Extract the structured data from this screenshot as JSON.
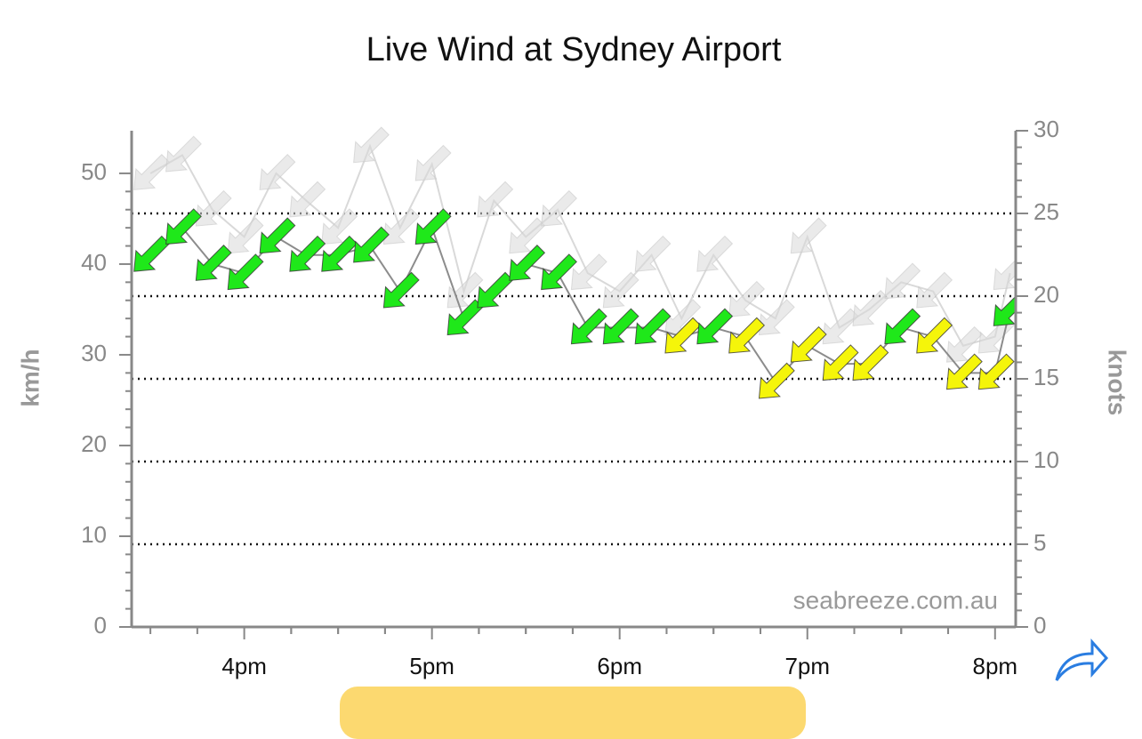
{
  "chart_data": {
    "type": "wind-arrows",
    "title": "Live Wind at Sydney Airport",
    "y_label": "km/h",
    "y2_label": "knots",
    "watermark": "seabreeze.com.au",
    "x": [
      15.5,
      15.67,
      15.83,
      16,
      16.17,
      16.33,
      16.5,
      16.67,
      16.83,
      17,
      17.17,
      17.33,
      17.5,
      17.67,
      17.83,
      18,
      18.17,
      18.33,
      18.5,
      18.67,
      18.83,
      19,
      19.17,
      19.33,
      19.5,
      19.67,
      19.83,
      20,
      20.08
    ],
    "xlim": [
      15.4,
      20.11
    ],
    "xticks": [
      {
        "value": 16,
        "label": "4pm"
      },
      {
        "value": 17,
        "label": "5pm"
      },
      {
        "value": 18,
        "label": "6pm"
      },
      {
        "value": 19,
        "label": "7pm"
      },
      {
        "value": 20,
        "label": "8pm"
      }
    ],
    "ylim": [
      0,
      54.7
    ],
    "yticks": [
      0,
      10,
      20,
      30,
      40,
      50
    ],
    "y2lim": [
      0,
      30
    ],
    "y2ticks": [
      0,
      5,
      10,
      15,
      20,
      25,
      30
    ],
    "grid": "y2",
    "series": [
      {
        "kind": "gust",
        "color": "#d9d9d9",
        "values": [
          50,
          52,
          46,
          43,
          50,
          47,
          44,
          53,
          44,
          51,
          37,
          47,
          43,
          46,
          39,
          37,
          41,
          34,
          41,
          36,
          34,
          43,
          33,
          35,
          38,
          37,
          31,
          32,
          39
        ]
      },
      {
        "kind": "speed",
        "color": "#8c8c8c",
        "values": [
          41,
          44,
          40,
          39,
          43,
          41,
          41,
          42,
          37,
          44,
          34,
          37,
          40,
          39,
          33,
          33,
          33,
          32,
          33,
          32,
          27,
          31,
          29,
          29,
          33,
          32,
          28,
          28,
          35
        ],
        "colors": [
          "#1fe81a",
          "#1fe81a",
          "#1fe81a",
          "#1fe81a",
          "#1fe81a",
          "#1fe81a",
          "#1fe81a",
          "#1fe81a",
          "#1fe81a",
          "#1fe81a",
          "#1fe81a",
          "#1fe81a",
          "#1fe81a",
          "#1fe81a",
          "#1fe81a",
          "#1fe81a",
          "#1fe81a",
          "#f5f50a",
          "#1fe81a",
          "#f5f50a",
          "#f5f50a",
          "#f5f50a",
          "#f5f50a",
          "#f5f50a",
          "#1fe81a",
          "#f5f50a",
          "#f5f50a",
          "#f5f50a",
          "#1fe81a"
        ]
      }
    ]
  }
}
